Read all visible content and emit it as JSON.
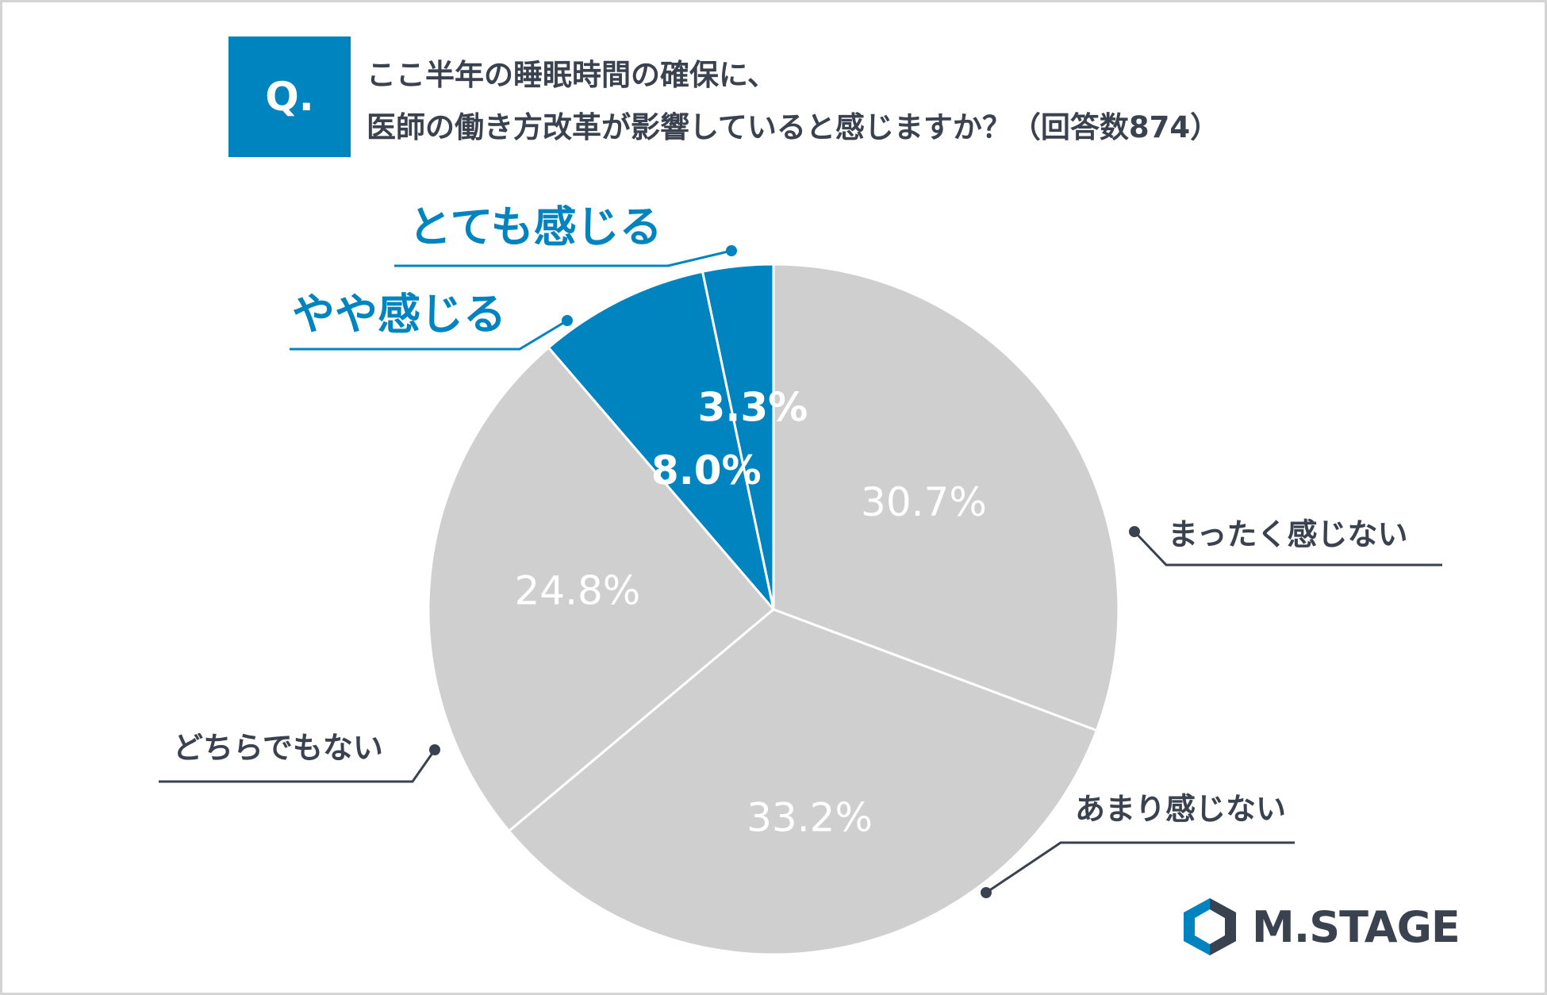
{
  "header": {
    "q_label": "Q.",
    "question_line1": "ここ半年の睡眠時間の確保に、",
    "question_line2": "医師の働き方改革が影響していると感じますか？（回答数874）"
  },
  "chart_data": {
    "type": "pie",
    "start_angle_deg": 0,
    "direction": "counterclockwise",
    "slices": [
      {
        "label": "とても感じる",
        "value": 3.3,
        "value_label": "3.3%",
        "color": "#0084c0",
        "label_color": "#0084c0"
      },
      {
        "label": "やや感じる",
        "value": 8.0,
        "value_label": "8.0%",
        "color": "#0084c0",
        "label_color": "#0084c0"
      },
      {
        "label": "どちらでもない",
        "value": 24.8,
        "value_label": "24.8%",
        "color": "#d0cfd0",
        "label_color": "#3a4250"
      },
      {
        "label": "あまり感じない",
        "value": 33.2,
        "value_label": "33.2%",
        "color": "#d0cfd0",
        "label_color": "#3a4250"
      },
      {
        "label": "まったく感じない",
        "value": 30.7,
        "value_label": "30.7%",
        "color": "#d0cfd0",
        "label_color": "#3a4250"
      }
    ]
  },
  "brand": {
    "logo_text": "M.STAGE",
    "colors": {
      "accent": "#0084c0",
      "dark": "#3a4250",
      "slice_gray": "#d0cfd0"
    }
  }
}
